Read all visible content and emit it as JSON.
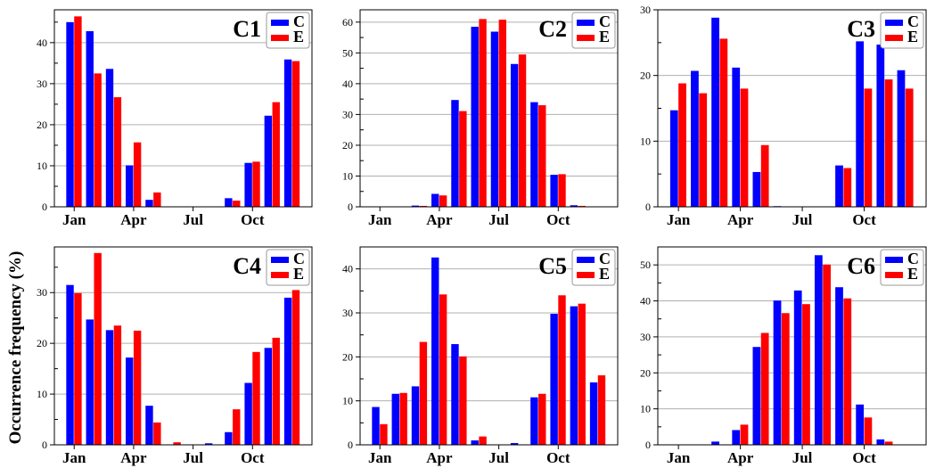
{
  "ylabel": "Occurrence frequency (%)",
  "colors": {
    "C": "#0000ff",
    "E": "#ff0000",
    "grid": "#b0b0b0"
  },
  "chart_data": [
    {
      "type": "bar",
      "title": "C1",
      "categories": [
        "Jan",
        "Feb",
        "Mar",
        "Apr",
        "May",
        "Jun",
        "Jul",
        "Aug",
        "Sep",
        "Oct",
        "Nov",
        "Dec"
      ],
      "xticklabels": [
        "Jan",
        "Apr",
        "Jul",
        "Oct"
      ],
      "ylim": [
        0,
        48
      ],
      "yticks": [
        0,
        10,
        20,
        30,
        40
      ],
      "legend_position": "top-right",
      "grid": "horizontal",
      "series": [
        {
          "name": "C",
          "values": [
            45,
            42.8,
            33.6,
            10.1,
            1.7,
            0,
            0,
            0,
            2.1,
            10.7,
            22.2,
            35.9
          ]
        },
        {
          "name": "E",
          "values": [
            46.4,
            32.5,
            26.7,
            15.7,
            3.5,
            0,
            0,
            0,
            1.5,
            11,
            25.5,
            35.5
          ]
        }
      ]
    },
    {
      "type": "bar",
      "title": "C2",
      "categories": [
        "Jan",
        "Feb",
        "Mar",
        "Apr",
        "May",
        "Jun",
        "Jul",
        "Aug",
        "Sep",
        "Oct",
        "Nov",
        "Dec"
      ],
      "xticklabels": [
        "Jan",
        "Apr",
        "Jul",
        "Oct"
      ],
      "ylim": [
        0,
        64
      ],
      "yticks": [
        0,
        10,
        20,
        30,
        40,
        50,
        60
      ],
      "legend_position": "top-right",
      "grid": "horizontal",
      "series": [
        {
          "name": "C",
          "values": [
            0,
            0.1,
            0.4,
            4.2,
            34.7,
            58.5,
            56.9,
            46.4,
            34,
            10.4,
            0.5,
            0
          ]
        },
        {
          "name": "E",
          "values": [
            0,
            0,
            0.3,
            3.7,
            31.1,
            61,
            60.8,
            49.5,
            33,
            10.6,
            0.3,
            0
          ]
        }
      ]
    },
    {
      "type": "bar",
      "title": "C3",
      "categories": [
        "Jan",
        "Feb",
        "Mar",
        "Apr",
        "May",
        "Jun",
        "Jul",
        "Aug",
        "Sep",
        "Oct",
        "Nov",
        "Dec"
      ],
      "xticklabels": [
        "Jan",
        "Apr",
        "Jul",
        "Oct"
      ],
      "ylim": [
        0,
        30
      ],
      "yticks": [
        0,
        10,
        20,
        30
      ],
      "legend_position": "top-right",
      "grid": "horizontal",
      "series": [
        {
          "name": "C",
          "values": [
            14.7,
            20.7,
            28.8,
            21.2,
            5.3,
            0.1,
            0,
            0,
            6.3,
            25.2,
            24.7,
            20.8
          ]
        },
        {
          "name": "E",
          "values": [
            18.8,
            17.3,
            25.6,
            18,
            9.4,
            0,
            0,
            0,
            5.9,
            18,
            19.4,
            18
          ]
        }
      ]
    },
    {
      "type": "bar",
      "title": "C4",
      "categories": [
        "Jan",
        "Feb",
        "Mar",
        "Apr",
        "May",
        "Jun",
        "Jul",
        "Aug",
        "Sep",
        "Oct",
        "Nov",
        "Dec"
      ],
      "xticklabels": [
        "Jan",
        "Apr",
        "Jul",
        "Oct"
      ],
      "ylim": [
        0,
        39
      ],
      "yticks": [
        0,
        10,
        20,
        30
      ],
      "legend_position": "top-right",
      "grid": "horizontal",
      "series": [
        {
          "name": "C",
          "values": [
            31.5,
            24.7,
            22.6,
            17.2,
            7.7,
            0,
            0,
            0.3,
            2.5,
            12.2,
            19.1,
            29
          ]
        },
        {
          "name": "E",
          "values": [
            29.9,
            37.8,
            23.5,
            22.5,
            4.4,
            0.5,
            0,
            0,
            7,
            18.3,
            21.1,
            30.5
          ]
        }
      ]
    },
    {
      "type": "bar",
      "title": "C5",
      "categories": [
        "Jan",
        "Feb",
        "Mar",
        "Apr",
        "May",
        "Jun",
        "Jul",
        "Aug",
        "Sep",
        "Oct",
        "Nov",
        "Dec"
      ],
      "xticklabels": [
        "Jan",
        "Apr",
        "Jul",
        "Oct"
      ],
      "ylim": [
        0,
        45
      ],
      "yticks": [
        0,
        10,
        20,
        30,
        40
      ],
      "legend_position": "top-right",
      "grid": "horizontal",
      "series": [
        {
          "name": "C",
          "values": [
            8.6,
            11.6,
            13.3,
            42.6,
            22.9,
            1,
            0,
            0.4,
            10.8,
            29.8,
            31.5,
            14.2
          ]
        },
        {
          "name": "E",
          "values": [
            4.7,
            11.8,
            23.4,
            34.2,
            20.1,
            1.9,
            0,
            0,
            11.6,
            34,
            32.1,
            15.8
          ]
        }
      ]
    },
    {
      "type": "bar",
      "title": "C6",
      "categories": [
        "Jan",
        "Feb",
        "Mar",
        "Apr",
        "May",
        "Jun",
        "Jul",
        "Aug",
        "Sep",
        "Oct",
        "Nov",
        "Dec"
      ],
      "xticklabels": [
        "Jan",
        "Apr",
        "Jul",
        "Oct"
      ],
      "ylim": [
        0,
        55
      ],
      "yticks": [
        0,
        10,
        20,
        30,
        40,
        50
      ],
      "legend_position": "top-right",
      "grid": "horizontal",
      "series": [
        {
          "name": "C",
          "values": [
            0,
            0,
            0.9,
            4.1,
            27.2,
            40.1,
            42.9,
            52.7,
            43.8,
            11.2,
            1.5,
            0
          ]
        },
        {
          "name": "E",
          "values": [
            0,
            0,
            0,
            5.6,
            31.1,
            36.6,
            39.1,
            50.1,
            40.7,
            7.6,
            0.9,
            0
          ]
        }
      ]
    }
  ]
}
